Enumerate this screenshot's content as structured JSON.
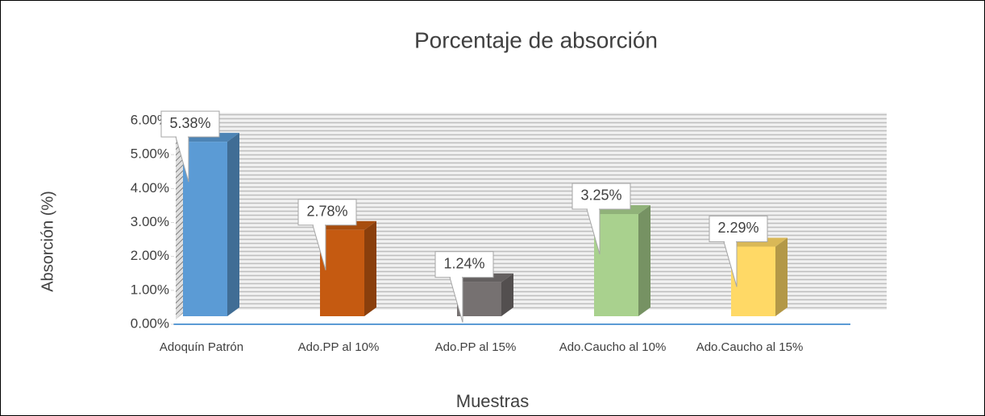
{
  "chart_data": {
    "type": "bar3d",
    "title": "Porcentaje de absorción",
    "x_label": "Muestras",
    "y_label": "Absorción (%)",
    "categories": [
      "Adoquín Patrón",
      "Ado.PP al 10%",
      "Ado.PP al 15%",
      "Ado.Caucho al 10%",
      "Ado.Caucho al 15%"
    ],
    "values": [
      5.38,
      2.78,
      1.24,
      3.25,
      2.29
    ],
    "value_labels": [
      "5.38%",
      "2.78%",
      "1.24%",
      "3.25%",
      "2.29%"
    ],
    "colors": [
      "#5b9bd5",
      "#c55a11",
      "#767171",
      "#a9d18e",
      "#ffd966"
    ],
    "ylim": [
      0,
      6
    ],
    "yticks": [
      {
        "value": 0,
        "label": "0.00%"
      },
      {
        "value": 1,
        "label": "1.00%"
      },
      {
        "value": 2,
        "label": "2.00%"
      },
      {
        "value": 3,
        "label": "3.00%"
      },
      {
        "value": 4,
        "label": "4.00%"
      },
      {
        "value": 5,
        "label": "5.00%"
      },
      {
        "value": 6,
        "label": "6.00%"
      }
    ]
  }
}
